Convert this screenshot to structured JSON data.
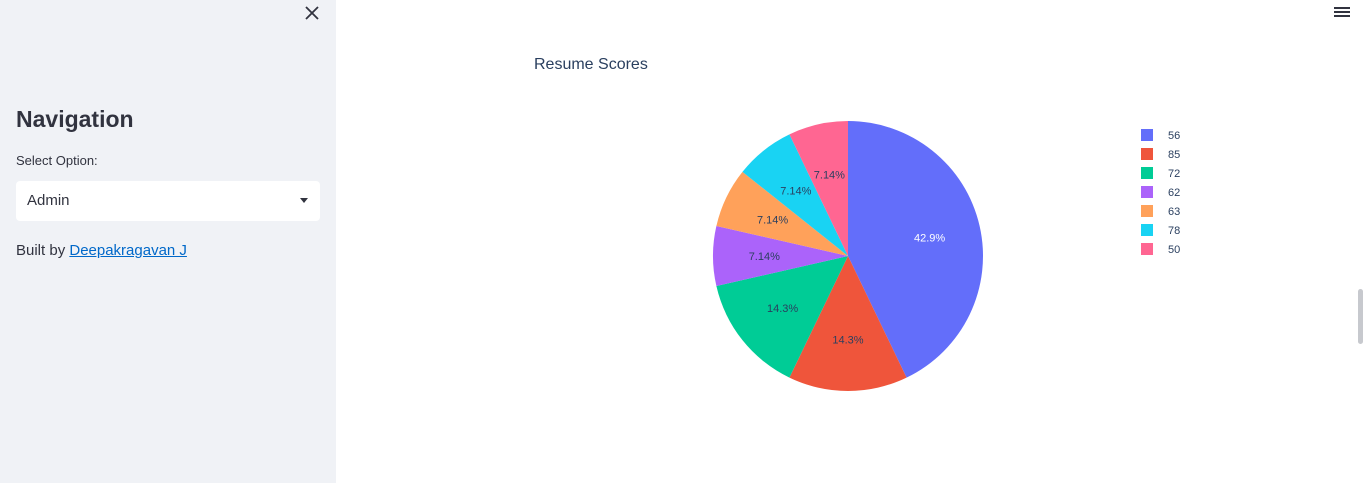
{
  "sidebar": {
    "title": "Navigation",
    "select_label": "Select Option:",
    "select_value": "Admin",
    "built_by_prefix": "Built by ",
    "built_by_link": "Deepakragavan J"
  },
  "chart_data": {
    "type": "pie",
    "title": "Resume Scores",
    "labels": [
      "56",
      "85",
      "72",
      "62",
      "63",
      "78",
      "50"
    ],
    "values": [
      6,
      2,
      2,
      1,
      1,
      1,
      1
    ],
    "percent_labels": [
      "42.9%",
      "14.3%",
      "14.3%",
      "7.14%",
      "7.14%",
      "7.14%",
      "7.14%"
    ],
    "colors": [
      "#636efa",
      "#ef553b",
      "#00cc96",
      "#ab63fa",
      "#ffa15a",
      "#19d3f3",
      "#ff6692"
    ],
    "legend": "right"
  },
  "icons": {
    "close": "close-icon",
    "menu": "hamburger-menu-icon",
    "dropdown": "chevron-down-icon"
  }
}
